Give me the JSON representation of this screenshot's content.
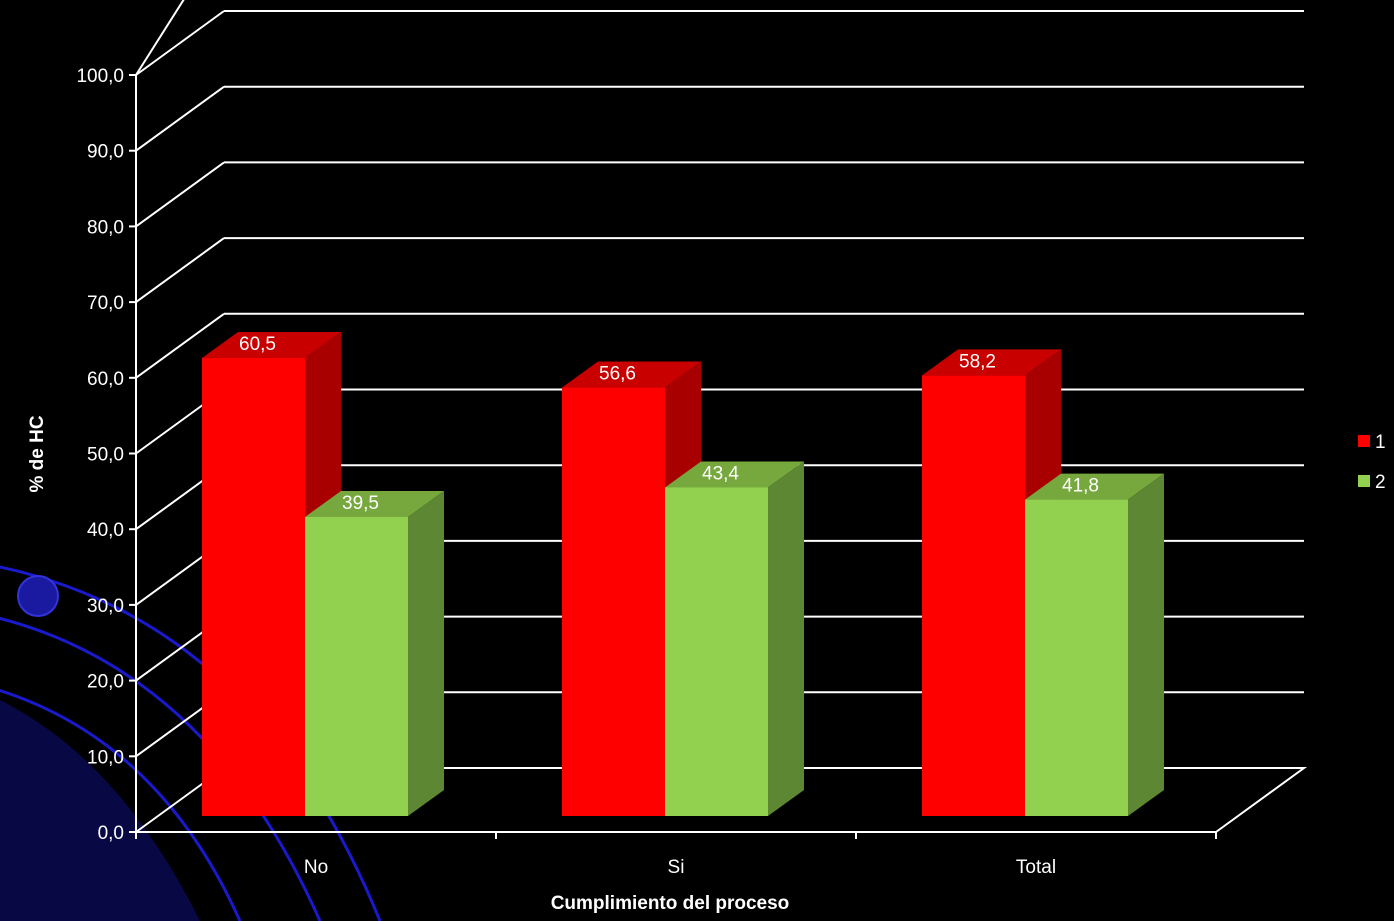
{
  "chart_data": {
    "type": "bar",
    "style": "3d-clustered-column",
    "categories": [
      "No",
      "Si",
      "Total"
    ],
    "series": [
      {
        "name": "1",
        "values": [
          60.5,
          56.6,
          58.2
        ],
        "color": "#ff0000",
        "side_color": "#a80000",
        "top_color": "#c80000"
      },
      {
        "name": "2",
        "values": [
          39.5,
          43.4,
          41.8
        ],
        "color": "#92d050",
        "side_color": "#5e8733",
        "top_color": "#76a83e"
      }
    ],
    "data_labels": [
      [
        "60,5",
        "56,6",
        "58,2"
      ],
      [
        "39,5",
        "43,4",
        "41,8"
      ]
    ],
    "y_ticks": [
      "0,0",
      "10,0",
      "20,0",
      "30,0",
      "40,0",
      "50,0",
      "60,0",
      "70,0",
      "80,0",
      "90,0",
      "100,0"
    ],
    "ylim": [
      0,
      100
    ],
    "xlabel": "Cumplimiento del proceso",
    "ylabel": "% de HC",
    "grid": true,
    "legend_position": "right",
    "background": "#000000",
    "text_color": "#ffffff"
  }
}
